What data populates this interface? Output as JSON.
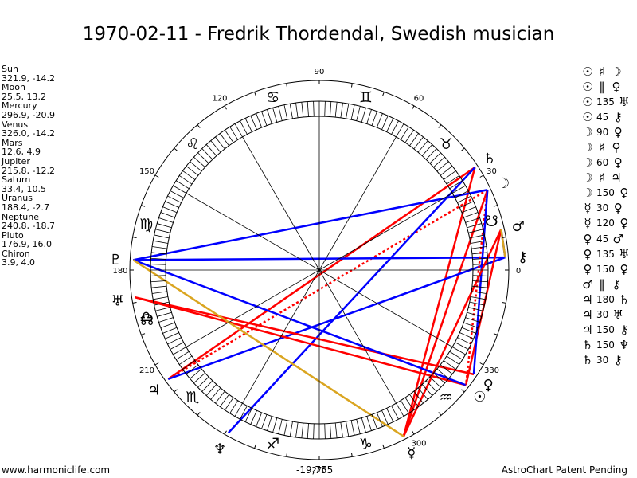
{
  "title": "1970-02-11 - Fredrik Thordendal, Swedish musician",
  "planets": [
    {
      "name": "Sun",
      "coords": "321.9, -14.2",
      "glyph": "☉"
    },
    {
      "name": "Moon",
      "coords": "25.5, 13.2",
      "glyph": "☽"
    },
    {
      "name": "Mercury",
      "coords": "296.9, -20.9",
      "glyph": "☿"
    },
    {
      "name": "Venus",
      "coords": "326.0, -14.2",
      "glyph": "♀"
    },
    {
      "name": "Mars",
      "coords": "12.6, 4.9",
      "glyph": "♂"
    },
    {
      "name": "Jupiter",
      "coords": "215.8, -12.2",
      "glyph": "♃"
    },
    {
      "name": "Saturn",
      "coords": "33.4, 10.5",
      "glyph": "♄"
    },
    {
      "name": "Uranus",
      "coords": "188.4, -2.7",
      "glyph": "♅"
    },
    {
      "name": "Neptune",
      "coords": "240.8, -18.7",
      "glyph": "♆"
    },
    {
      "name": "Pluto",
      "coords": "176.9, 16.0",
      "glyph": "♇"
    },
    {
      "name": "Chiron",
      "coords": "3.9, 4.0",
      "glyph": "⚷"
    }
  ],
  "aspects": [
    {
      "p1": "☉",
      "type": "♯",
      "value": "",
      "p2": "☽"
    },
    {
      "p1": "☉",
      "type": "∥",
      "value": "",
      "p2": "♀"
    },
    {
      "p1": "☉",
      "type": "",
      "value": "135",
      "p2": "♅"
    },
    {
      "p1": "☉",
      "type": "",
      "value": "45",
      "p2": "⚷"
    },
    {
      "p1": "☽",
      "type": "",
      "value": "90",
      "p2": "♀"
    },
    {
      "p1": "☽",
      "type": "♯",
      "value": "",
      "p2": "♀"
    },
    {
      "p1": "☽",
      "type": "",
      "value": "60",
      "p2": "♀"
    },
    {
      "p1": "☽",
      "type": "♯",
      "value": "",
      "p2": "♃"
    },
    {
      "p1": "☽",
      "type": "",
      "value": "150",
      "p2": "♀"
    },
    {
      "p1": "☿",
      "type": "",
      "value": "30",
      "p2": "♀"
    },
    {
      "p1": "☿",
      "type": "",
      "value": "120",
      "p2": "♀"
    },
    {
      "p1": "♀",
      "type": "",
      "value": "45",
      "p2": "♂"
    },
    {
      "p1": "♀",
      "type": "",
      "value": "135",
      "p2": "♅"
    },
    {
      "p1": "♀",
      "type": "",
      "value": "150",
      "p2": "♀"
    },
    {
      "p1": "♂",
      "type": "∥",
      "value": "",
      "p2": "⚷"
    },
    {
      "p1": "♃",
      "type": "",
      "value": "180",
      "p2": "♄"
    },
    {
      "p1": "♃",
      "type": "",
      "value": "30",
      "p2": "♅"
    },
    {
      "p1": "♃",
      "type": "",
      "value": "150",
      "p2": "⚷"
    },
    {
      "p1": "♄",
      "type": "",
      "value": "150",
      "p2": "♆"
    },
    {
      "p1": "♄",
      "type": "",
      "value": "30",
      "p2": "⚷"
    }
  ],
  "wheel": {
    "degree_labels": [
      {
        "deg": 0,
        "text": "0"
      },
      {
        "deg": 30,
        "text": "30"
      },
      {
        "deg": 60,
        "text": "60"
      },
      {
        "deg": 90,
        "text": "90"
      },
      {
        "deg": 120,
        "text": "120"
      },
      {
        "deg": 150,
        "text": "150"
      },
      {
        "deg": 180,
        "text": "180"
      },
      {
        "deg": 210,
        "text": "210"
      },
      {
        "deg": 270,
        "text": "270"
      },
      {
        "deg": 300,
        "text": "300"
      },
      {
        "deg": 330,
        "text": "330"
      }
    ],
    "signs": [
      {
        "deg": 45,
        "glyph": "♉"
      },
      {
        "deg": 75,
        "glyph": "♊"
      },
      {
        "deg": 105,
        "glyph": "♋"
      },
      {
        "deg": 135,
        "glyph": "♌"
      },
      {
        "deg": 165,
        "glyph": "♍"
      },
      {
        "deg": 195,
        "glyph": "♎"
      },
      {
        "deg": 225,
        "glyph": "♏"
      },
      {
        "deg": 255,
        "glyph": "♐"
      },
      {
        "deg": 285,
        "glyph": "♑"
      },
      {
        "deg": 315,
        "glyph": "♒"
      }
    ],
    "nodes": [
      {
        "deg": 196,
        "glyph": "☊"
      },
      {
        "deg": 16,
        "glyph": "☋"
      }
    ],
    "planet_positions": [
      {
        "glyph": "☉",
        "deg": 321.9
      },
      {
        "glyph": "☽",
        "deg": 25.5
      },
      {
        "glyph": "☿",
        "deg": 296.9
      },
      {
        "glyph": "♀",
        "deg": 326.0
      },
      {
        "glyph": "♂",
        "deg": 12.6
      },
      {
        "glyph": "♃",
        "deg": 215.8
      },
      {
        "glyph": "♄",
        "deg": 33.4
      },
      {
        "glyph": "♅",
        "deg": 188.4
      },
      {
        "glyph": "♆",
        "deg": 240.8
      },
      {
        "glyph": "♇",
        "deg": 176.9
      },
      {
        "glyph": "⚷",
        "deg": 3.9
      }
    ],
    "aspect_lines": [
      {
        "from": 25.5,
        "to": 215.8,
        "color": "#ff0000",
        "style": "dotted"
      },
      {
        "from": 33.4,
        "to": 215.8,
        "color": "#ff0000",
        "style": "solid"
      },
      {
        "from": 33.4,
        "to": 296.9,
        "color": "#ff0000",
        "style": "solid"
      },
      {
        "from": 25.5,
        "to": 296.9,
        "color": "#ff0000",
        "style": "solid"
      },
      {
        "from": 25.5,
        "to": 176.9,
        "color": "#0000ff",
        "style": "solid"
      },
      {
        "from": 33.4,
        "to": 240.8,
        "color": "#0000ff",
        "style": "solid"
      },
      {
        "from": 3.9,
        "to": 176.9,
        "color": "#0000ff",
        "style": "solid"
      },
      {
        "from": 3.9,
        "to": 12.6,
        "color": "#0000ff",
        "style": "solid"
      },
      {
        "from": 3.9,
        "to": 215.8,
        "color": "#0000ff",
        "style": "solid"
      },
      {
        "from": 12.6,
        "to": 321.9,
        "color": "#ff0000",
        "style": "solid"
      },
      {
        "from": 188.4,
        "to": 321.9,
        "color": "#ff0000",
        "style": "solid"
      },
      {
        "from": 188.4,
        "to": 326.0,
        "color": "#ff0000",
        "style": "solid"
      },
      {
        "from": 176.9,
        "to": 321.9,
        "color": "#0000ff",
        "style": "solid"
      },
      {
        "from": 25.5,
        "to": 321.9,
        "color": "#ff0000",
        "style": "dotted"
      },
      {
        "from": 25.5,
        "to": 326.0,
        "color": "#0000ff",
        "style": "solid"
      },
      {
        "from": 12.6,
        "to": 296.9,
        "color": "#ff0000",
        "style": "solid"
      },
      {
        "from": 176.9,
        "to": 296.9,
        "color": "#daa520",
        "style": "solid"
      },
      {
        "from": 12.6,
        "to": 3.9,
        "color": "#daa520",
        "style": "solid"
      }
    ]
  },
  "footer": {
    "left": "www.harmoniclife.com",
    "center": "-19,755",
    "right": "AstroChart Patent Pending"
  }
}
